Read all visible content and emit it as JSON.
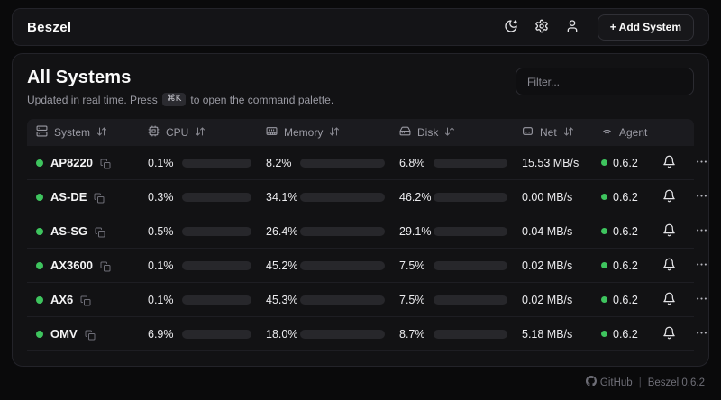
{
  "header": {
    "brand": "Beszel",
    "add_system_label": "+ Add System"
  },
  "main": {
    "title": "All Systems",
    "subtitle_prefix": "Updated in real time. Press",
    "kbd": "⌘K",
    "subtitle_suffix": "to open the command palette.",
    "filter_placeholder": "Filter..."
  },
  "table": {
    "columns": [
      {
        "label": "System",
        "icon": "server-icon",
        "sortable": true
      },
      {
        "label": "CPU",
        "icon": "cpu-icon",
        "sortable": true
      },
      {
        "label": "Memory",
        "icon": "memory-icon",
        "sortable": true
      },
      {
        "label": "Disk",
        "icon": "hard-drive-icon",
        "sortable": true
      },
      {
        "label": "Net",
        "icon": "ethernet-icon",
        "sortable": true
      },
      {
        "label": "Agent",
        "icon": "wifi-icon",
        "sortable": false
      }
    ],
    "rows": [
      {
        "name": "AP8220",
        "cpu": "0.1%",
        "cpu_pct": 0.1,
        "memory": "8.2%",
        "memory_pct": 8.2,
        "disk": "6.8%",
        "disk_pct": 6.8,
        "net": "15.53 MB/s",
        "agent": "0.6.2"
      },
      {
        "name": "AS-DE",
        "cpu": "0.3%",
        "cpu_pct": 0.3,
        "memory": "34.1%",
        "memory_pct": 34.1,
        "disk": "46.2%",
        "disk_pct": 46.2,
        "net": "0.00 MB/s",
        "agent": "0.6.2"
      },
      {
        "name": "AS-SG",
        "cpu": "0.5%",
        "cpu_pct": 0.5,
        "memory": "26.4%",
        "memory_pct": 26.4,
        "disk": "29.1%",
        "disk_pct": 29.1,
        "net": "0.04 MB/s",
        "agent": "0.6.2"
      },
      {
        "name": "AX3600",
        "cpu": "0.1%",
        "cpu_pct": 0.1,
        "memory": "45.2%",
        "memory_pct": 45.2,
        "disk": "7.5%",
        "disk_pct": 7.5,
        "net": "0.02 MB/s",
        "agent": "0.6.2"
      },
      {
        "name": "AX6",
        "cpu": "0.1%",
        "cpu_pct": 0.1,
        "memory": "45.3%",
        "memory_pct": 45.3,
        "disk": "7.5%",
        "disk_pct": 7.5,
        "net": "0.02 MB/s",
        "agent": "0.6.2"
      },
      {
        "name": "OMV",
        "cpu": "6.9%",
        "cpu_pct": 6.9,
        "memory": "18.0%",
        "memory_pct": 18.0,
        "disk": "8.7%",
        "disk_pct": 8.7,
        "net": "5.18 MB/s",
        "agent": "0.6.2"
      }
    ]
  },
  "footer": {
    "github": "GitHub",
    "version": "Beszel 0.6.2"
  },
  "colors": {
    "accent_green": "#3ec45e",
    "page_bg": "#0a0a0b",
    "card_bg": "#121214",
    "table_header_bg": "#1b1b1f",
    "bar_track": "#27272b"
  }
}
